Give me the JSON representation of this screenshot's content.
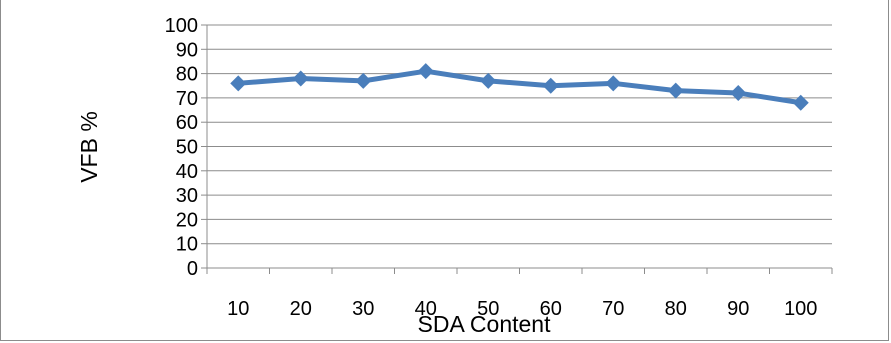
{
  "chart_data": {
    "type": "line",
    "title": "",
    "xlabel": "SDA Content",
    "ylabel": "VFB %",
    "categories": [
      "10",
      "20",
      "30",
      "40",
      "50",
      "60",
      "70",
      "80",
      "90",
      "100"
    ],
    "series": [
      {
        "values": [
          76,
          78,
          77,
          81,
          77,
          75,
          76,
          73,
          72,
          68
        ],
        "color": "#4a7ebb",
        "marker": "diamond"
      }
    ],
    "yticks": [
      "0",
      "10",
      "20",
      "30",
      "40",
      "50",
      "60",
      "70",
      "80",
      "90",
      "100"
    ],
    "ylim": [
      0,
      100
    ],
    "grid": true,
    "legend": "none",
    "gridline_color": "#8c8c8c",
    "axis_color": "#8c8c8c"
  }
}
